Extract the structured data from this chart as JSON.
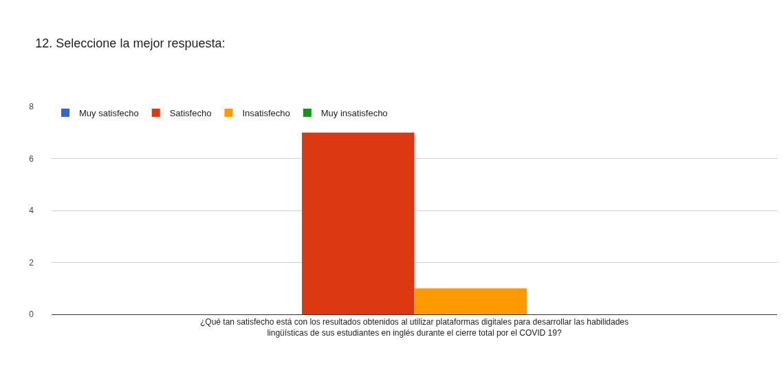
{
  "chart_data": {
    "type": "bar",
    "title": "12. Seleccione la mejor respuesta:",
    "categories": [
      "¿Qué tan satisfecho está con los resultados obtenidos al utilizar plataformas digitales para desarrollar las habilidades lingüísticas de sus estudiantes en inglés durante el cierre total por el COVID 19?"
    ],
    "series": [
      {
        "name": "Muy satisfecho",
        "color": "#3366cc",
        "values": [
          0
        ]
      },
      {
        "name": "Satisfecho",
        "color": "#dc3912",
        "values": [
          7
        ]
      },
      {
        "name": "Insatisfecho",
        "color": "#ff9900",
        "values": [
          1
        ]
      },
      {
        "name": "Muy insatisfecho",
        "color": "#109618",
        "values": [
          0
        ]
      }
    ],
    "ylim": [
      0,
      8
    ],
    "yticks": [
      0,
      2,
      4,
      6,
      8
    ],
    "grid": "y",
    "legend": "top left"
  }
}
